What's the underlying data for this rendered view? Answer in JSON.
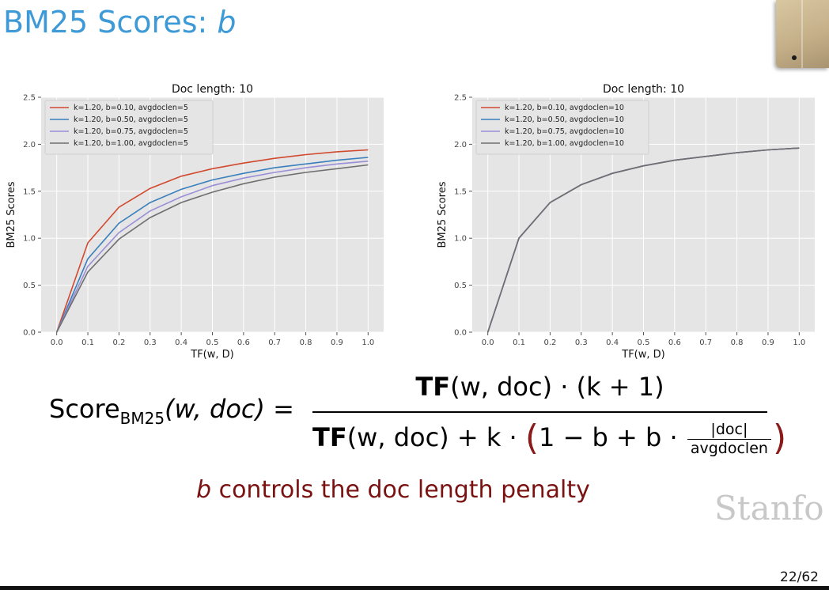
{
  "title": {
    "prefix": "BM25 Scores: ",
    "var": "b"
  },
  "formula": {
    "lhs_main": "Score",
    "lhs_sub": "BM25",
    "lhs_args": "(w, doc) =",
    "num_tf": "TF",
    "num_rest": "(w, doc) · (k + 1)",
    "den_tf": "TF",
    "den_rest": "(w, doc) + k · ",
    "den_open": "(",
    "den_inner": "1 − b + b · ",
    "den_frac_num": "|doc|",
    "den_frac_den": "avgdoclen",
    "den_close": ")"
  },
  "caption": {
    "var": "b",
    "text": " controls the doc length penalty"
  },
  "watermark": "Stanfo",
  "page_number": "22/62",
  "chart_data": [
    {
      "type": "line",
      "title": "Doc length: 10",
      "xlabel": "TF(w, D)",
      "ylabel": "BM25 Scores",
      "xlim": [
        -0.05,
        1.05
      ],
      "ylim": [
        0,
        2.5
      ],
      "xticks": [
        "0.0",
        "0.1",
        "0.2",
        "0.3",
        "0.4",
        "0.5",
        "0.6",
        "0.7",
        "0.8",
        "0.9",
        "1.0"
      ],
      "yticks": [
        "0.0",
        "0.5",
        "1.0",
        "1.5",
        "2.0",
        "2.5"
      ],
      "grid": true,
      "legend_position": "top-left",
      "x": [
        0,
        0.1,
        0.2,
        0.3,
        0.4,
        0.5,
        0.6,
        0.7,
        0.8,
        0.9,
        1.0
      ],
      "series": [
        {
          "name": "k=1.20, b=0.10, avgdoclen=5",
          "color": "#d1492e",
          "values": [
            0,
            0.95,
            1.33,
            1.53,
            1.66,
            1.74,
            1.8,
            1.85,
            1.89,
            1.92,
            1.94
          ]
        },
        {
          "name": "k=1.20, b=0.50, avgdoclen=5",
          "color": "#3a7fbd",
          "values": [
            0,
            0.78,
            1.16,
            1.38,
            1.52,
            1.62,
            1.69,
            1.75,
            1.79,
            1.83,
            1.86
          ]
        },
        {
          "name": "k=1.20, b=0.75, avgdoclen=5",
          "color": "#9a8fd6",
          "values": [
            0,
            0.7,
            1.06,
            1.29,
            1.44,
            1.56,
            1.64,
            1.7,
            1.75,
            1.79,
            1.82
          ]
        },
        {
          "name": "k=1.20, b=1.00, avgdoclen=5",
          "color": "#6f6f6f",
          "values": [
            0,
            0.64,
            0.99,
            1.22,
            1.38,
            1.49,
            1.58,
            1.65,
            1.7,
            1.74,
            1.78
          ]
        }
      ]
    },
    {
      "type": "line",
      "title": "Doc length: 10",
      "xlabel": "TF(w, D)",
      "ylabel": "BM25 Scores",
      "xlim": [
        -0.05,
        1.05
      ],
      "ylim": [
        0,
        2.5
      ],
      "xticks": [
        "0.0",
        "0.1",
        "0.2",
        "0.3",
        "0.4",
        "0.5",
        "0.6",
        "0.7",
        "0.8",
        "0.9",
        "1.0"
      ],
      "yticks": [
        "0.0",
        "0.5",
        "1.0",
        "1.5",
        "2.0",
        "2.5"
      ],
      "grid": true,
      "legend_position": "top-left",
      "x": [
        0,
        0.1,
        0.2,
        0.3,
        0.4,
        0.5,
        0.6,
        0.7,
        0.8,
        0.9,
        1.0
      ],
      "series": [
        {
          "name": "k=1.20, b=0.10, avgdoclen=10",
          "color": "#d1492e",
          "values": [
            0,
            1.0,
            1.38,
            1.57,
            1.69,
            1.77,
            1.83,
            1.87,
            1.91,
            1.94,
            1.96
          ]
        },
        {
          "name": "k=1.20, b=0.50, avgdoclen=10",
          "color": "#3a7fbd",
          "values": [
            0,
            1.0,
            1.38,
            1.57,
            1.69,
            1.77,
            1.83,
            1.87,
            1.91,
            1.94,
            1.96
          ]
        },
        {
          "name": "k=1.20, b=0.75, avgdoclen=10",
          "color": "#9a8fd6",
          "values": [
            0,
            1.0,
            1.38,
            1.57,
            1.69,
            1.77,
            1.83,
            1.87,
            1.91,
            1.94,
            1.96
          ]
        },
        {
          "name": "k=1.20, b=1.00, avgdoclen=10",
          "color": "#6f6f6f",
          "values": [
            0,
            1.0,
            1.38,
            1.57,
            1.69,
            1.77,
            1.83,
            1.87,
            1.91,
            1.94,
            1.96
          ]
        }
      ]
    }
  ]
}
